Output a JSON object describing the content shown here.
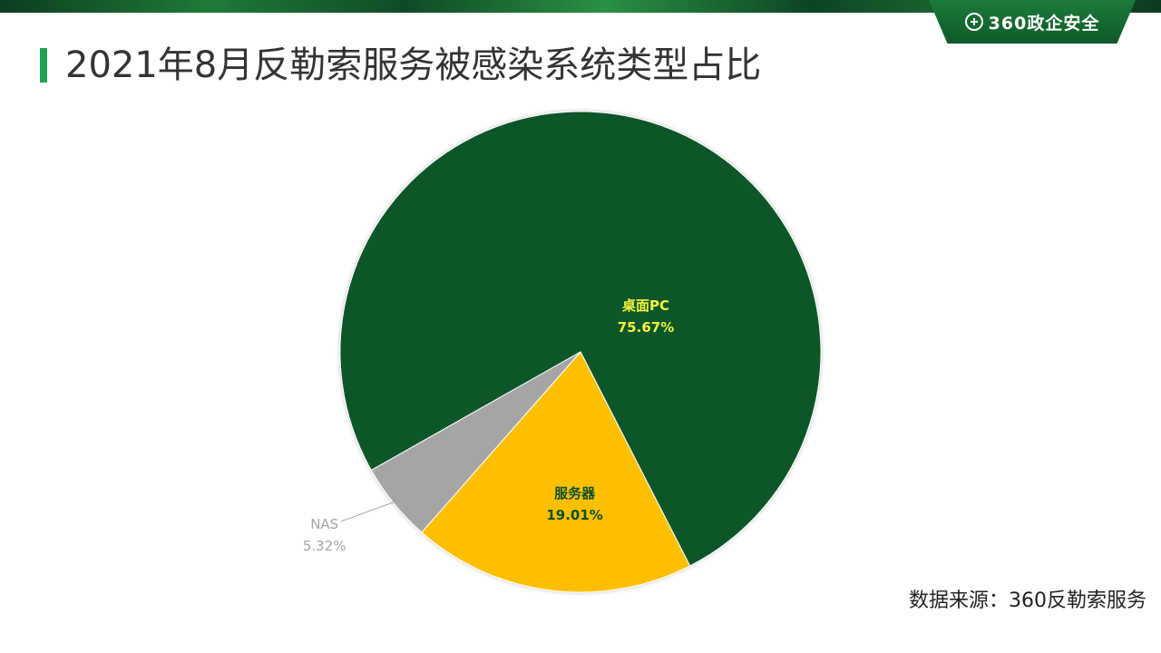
{
  "header": {
    "brand": "360政企安全",
    "brand_icon": "plus-circle-logo-icon",
    "title": "2021年8月反勒索服务被感染系统类型占比"
  },
  "colors": {
    "top_band": "#0f4a26",
    "accent": "#1fa150",
    "slice_pc": "#09562a",
    "slice_server": "#fdc000",
    "slice_nas": "#a5a5a5",
    "label_pc": "#f2f33c",
    "label_server": "#0d4f28",
    "label_nas": "#a5a5a5"
  },
  "chart_data": {
    "type": "pie",
    "title": "2021年8月反勒索服务被感染系统类型占比",
    "categories": [
      "桌面PC",
      "服务器",
      "NAS"
    ],
    "values": [
      75.67,
      19.01,
      5.32
    ],
    "labels": [
      "75.67%",
      "19.01%",
      "5.32%"
    ]
  },
  "footer": {
    "source": "数据来源：360反勒索服务"
  }
}
